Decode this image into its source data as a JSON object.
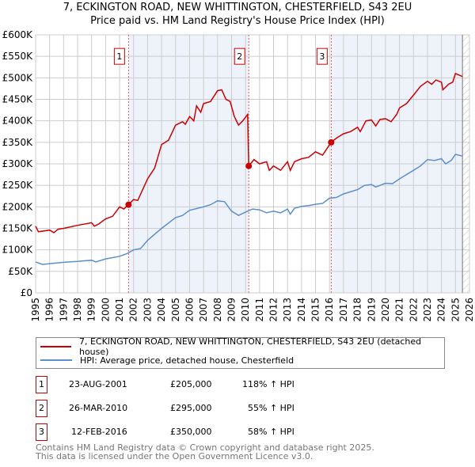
{
  "title_line1": "7, ECKINGTON ROAD, NEW WHITTINGTON, CHESTERFIELD, S43 2EU",
  "title_line2": "Price paid vs. HM Land Registry's House Price Index (HPI)",
  "chart_data": {
    "type": "line",
    "xlim": [
      1995,
      2026
    ],
    "ylim": [
      0,
      600000
    ],
    "y_ticks": [
      0,
      50000,
      100000,
      150000,
      200000,
      250000,
      300000,
      350000,
      400000,
      450000,
      500000,
      550000,
      600000
    ],
    "y_tick_labels": [
      "£0",
      "£50K",
      "£100K",
      "£150K",
      "£200K",
      "£250K",
      "£300K",
      "£350K",
      "£400K",
      "£450K",
      "£500K",
      "£550K",
      "£600K"
    ],
    "x_ticks": [
      1995,
      1996,
      1997,
      1998,
      1999,
      2000,
      2001,
      2002,
      2003,
      2004,
      2005,
      2006,
      2007,
      2008,
      2009,
      2010,
      2011,
      2012,
      2013,
      2014,
      2015,
      2016,
      2017,
      2018,
      2019,
      2020,
      2021,
      2022,
      2023,
      2024,
      2025,
      2026
    ],
    "grid": true,
    "shaded_ranges": [
      [
        2001.64,
        2010.23
      ],
      [
        2016.12,
        2025.5
      ]
    ],
    "hatched_from": 2025.5,
    "series": [
      {
        "name": "7, ECKINGTON ROAD, NEW WHITTINGTON, CHESTERFIELD, S43 2EU (detached house)",
        "color": "#cc0000",
        "points": [
          [
            1995,
            155
          ],
          [
            1995.2,
            142
          ],
          [
            1996,
            146
          ],
          [
            1996.3,
            140
          ],
          [
            1996.6,
            148
          ],
          [
            1997,
            150
          ],
          [
            1998,
            157
          ],
          [
            1999,
            163
          ],
          [
            1999.2,
            155
          ],
          [
            1999.5,
            160
          ],
          [
            2000,
            172
          ],
          [
            2000.5,
            178
          ],
          [
            2001,
            200
          ],
          [
            2001.3,
            195
          ],
          [
            2001.64,
            205
          ],
          [
            2002,
            217
          ],
          [
            2002.3,
            215
          ],
          [
            2003,
            265
          ],
          [
            2003.5,
            290
          ],
          [
            2004,
            345
          ],
          [
            2004.5,
            355
          ],
          [
            2005,
            390
          ],
          [
            2005.5,
            398
          ],
          [
            2005.7,
            392
          ],
          [
            2006,
            410
          ],
          [
            2006.3,
            400
          ],
          [
            2006.5,
            435
          ],
          [
            2006.8,
            420
          ],
          [
            2007,
            440
          ],
          [
            2007.5,
            445
          ],
          [
            2008,
            470
          ],
          [
            2008.3,
            472
          ],
          [
            2008.6,
            450
          ],
          [
            2008.9,
            445
          ],
          [
            2009.2,
            410
          ],
          [
            2009.5,
            390
          ],
          [
            2009.8,
            400
          ],
          [
            2010.15,
            415
          ],
          [
            2010.23,
            295
          ],
          [
            2010.6,
            310
          ],
          [
            2011,
            300
          ],
          [
            2011.5,
            305
          ],
          [
            2011.7,
            285
          ],
          [
            2012,
            295
          ],
          [
            2012.5,
            285
          ],
          [
            2013,
            305
          ],
          [
            2013.2,
            285
          ],
          [
            2013.5,
            305
          ],
          [
            2014,
            312
          ],
          [
            2014.5,
            315
          ],
          [
            2015,
            328
          ],
          [
            2015.5,
            320
          ],
          [
            2016.12,
            350
          ],
          [
            2016.5,
            360
          ],
          [
            2017,
            370
          ],
          [
            2017.5,
            375
          ],
          [
            2018,
            385
          ],
          [
            2018.2,
            375
          ],
          [
            2018.6,
            400
          ],
          [
            2019,
            402
          ],
          [
            2019.3,
            388
          ],
          [
            2019.6,
            403
          ],
          [
            2020,
            405
          ],
          [
            2020.4,
            398
          ],
          [
            2020.8,
            415
          ],
          [
            2021,
            430
          ],
          [
            2021.5,
            440
          ],
          [
            2022,
            460
          ],
          [
            2022.5,
            480
          ],
          [
            2023,
            492
          ],
          [
            2023.3,
            485
          ],
          [
            2023.6,
            495
          ],
          [
            2024,
            490
          ],
          [
            2024.1,
            472
          ],
          [
            2024.5,
            485
          ],
          [
            2024.8,
            490
          ],
          [
            2025,
            510
          ],
          [
            2025.5,
            503
          ]
        ]
      },
      {
        "name": "HPI: Average price, detached house, Chesterfield",
        "color": "#5b8fd0",
        "points": [
          [
            1995,
            72
          ],
          [
            1995.5,
            66
          ],
          [
            1996,
            68
          ],
          [
            1997,
            71
          ],
          [
            1998,
            73
          ],
          [
            1999,
            76
          ],
          [
            1999.3,
            72
          ],
          [
            2000,
            79
          ],
          [
            2001,
            85
          ],
          [
            2001.5,
            91
          ],
          [
            2002,
            100
          ],
          [
            2002.5,
            103
          ],
          [
            2003,
            122
          ],
          [
            2004,
            150
          ],
          [
            2005,
            175
          ],
          [
            2005.5,
            180
          ],
          [
            2006,
            192
          ],
          [
            2007,
            200
          ],
          [
            2007.5,
            205
          ],
          [
            2008,
            214
          ],
          [
            2008.5,
            212
          ],
          [
            2009,
            190
          ],
          [
            2009.5,
            180
          ],
          [
            2010,
            188
          ],
          [
            2010.5,
            195
          ],
          [
            2011,
            193
          ],
          [
            2011.5,
            186
          ],
          [
            2012,
            190
          ],
          [
            2012.5,
            186
          ],
          [
            2013,
            195
          ],
          [
            2013.2,
            183
          ],
          [
            2013.5,
            197
          ],
          [
            2014,
            201
          ],
          [
            2014.5,
            203
          ],
          [
            2015,
            206
          ],
          [
            2015.5,
            208
          ],
          [
            2016,
            220
          ],
          [
            2016.5,
            222
          ],
          [
            2017,
            230
          ],
          [
            2018,
            240
          ],
          [
            2018.5,
            250
          ],
          [
            2019,
            252
          ],
          [
            2019.3,
            246
          ],
          [
            2020,
            255
          ],
          [
            2020.5,
            254
          ],
          [
            2021,
            265
          ],
          [
            2022,
            285
          ],
          [
            2022.5,
            295
          ],
          [
            2023,
            310
          ],
          [
            2023.5,
            308
          ],
          [
            2024,
            312
          ],
          [
            2024.3,
            300
          ],
          [
            2024.7,
            308
          ],
          [
            2025,
            322
          ],
          [
            2025.5,
            318
          ]
        ]
      }
    ],
    "value_unit": "£K",
    "sales": [
      {
        "id": "1",
        "x": 2001.64,
        "price": 205
      },
      {
        "id": "2",
        "x": 2010.23,
        "price": 295
      },
      {
        "id": "3",
        "x": 2016.12,
        "price": 350
      }
    ]
  },
  "legend": {
    "red": "7, ECKINGTON ROAD, NEW WHITTINGTON, CHESTERFIELD, S43 2EU (detached house)",
    "blue": "HPI: Average price, detached house, Chesterfield"
  },
  "transactions": [
    {
      "id": "1",
      "date": "23-AUG-2001",
      "price": "£205,000",
      "hpi": "118% ↑ HPI"
    },
    {
      "id": "2",
      "date": "26-MAR-2010",
      "price": "£295,000",
      "hpi": "55% ↑ HPI"
    },
    {
      "id": "3",
      "date": "12-FEB-2016",
      "price": "£350,000",
      "hpi": "58% ↑ HPI"
    }
  ],
  "footer": {
    "line1": "Contains HM Land Registry data © Crown copyright and database right 2025.",
    "line2": "This data is licensed under the Open Government Licence v3.0."
  }
}
